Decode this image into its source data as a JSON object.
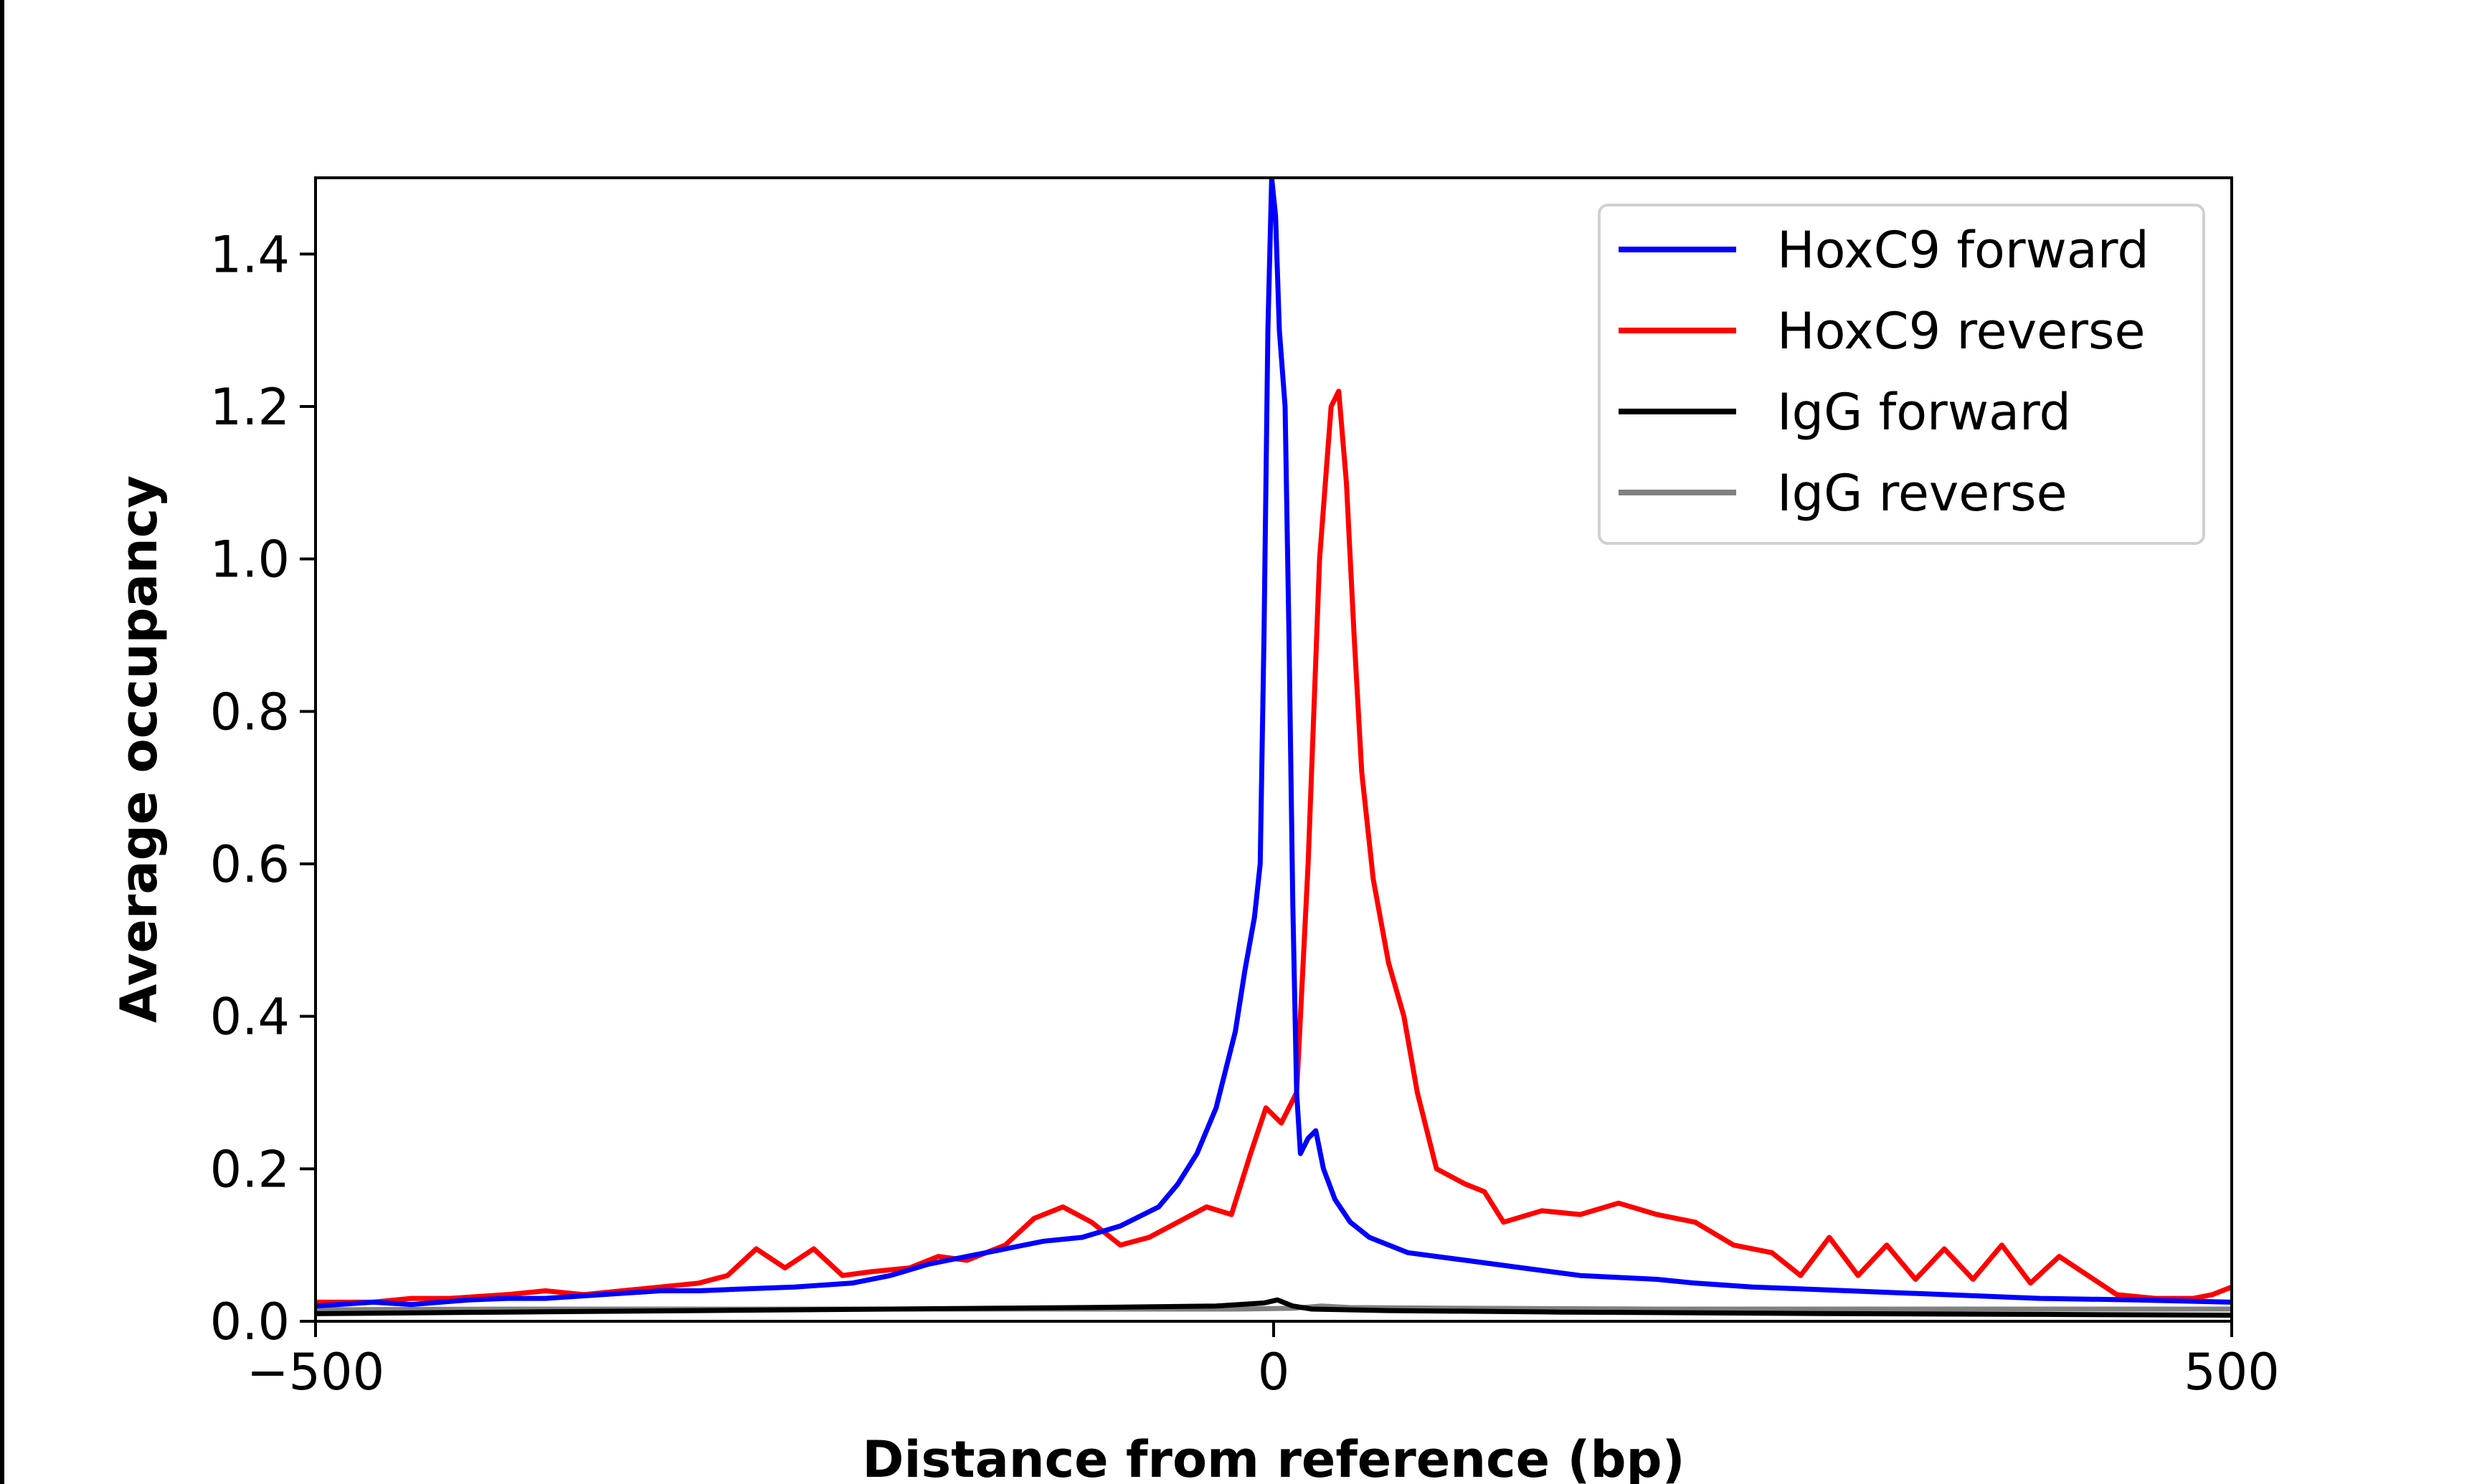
{
  "chart_data": {
    "type": "line",
    "title": "",
    "xlabel": "Distance from reference (bp)",
    "ylabel": "Average occupancy",
    "xlim": [
      -500,
      500
    ],
    "ylim": [
      0,
      1.5
    ],
    "xticks": [
      -500,
      0,
      500
    ],
    "xtick_labels": [
      "−500",
      "0",
      "500"
    ],
    "yticks": [
      0.0,
      0.2,
      0.4,
      0.6,
      0.8,
      1.0,
      1.2,
      1.4
    ],
    "ytick_labels": [
      "0.0",
      "0.2",
      "0.4",
      "0.6",
      "0.8",
      "1.0",
      "1.2",
      "1.4"
    ],
    "grid": false,
    "legend_position": "top-right",
    "series": [
      {
        "name": "HoxC9 forward",
        "color": "#0000ff",
        "points": [
          [
            -500,
            0.02
          ],
          [
            -470,
            0.025
          ],
          [
            -450,
            0.022
          ],
          [
            -420,
            0.028
          ],
          [
            -400,
            0.03
          ],
          [
            -380,
            0.03
          ],
          [
            -350,
            0.035
          ],
          [
            -320,
            0.04
          ],
          [
            -300,
            0.04
          ],
          [
            -280,
            0.042
          ],
          [
            -250,
            0.045
          ],
          [
            -220,
            0.05
          ],
          [
            -200,
            0.06
          ],
          [
            -180,
            0.075
          ],
          [
            -160,
            0.085
          ],
          [
            -140,
            0.095
          ],
          [
            -120,
            0.105
          ],
          [
            -100,
            0.11
          ],
          [
            -80,
            0.125
          ],
          [
            -60,
            0.15
          ],
          [
            -50,
            0.18
          ],
          [
            -40,
            0.22
          ],
          [
            -30,
            0.28
          ],
          [
            -20,
            0.38
          ],
          [
            -15,
            0.46
          ],
          [
            -10,
            0.53
          ],
          [
            -7,
            0.6
          ],
          [
            -5,
            0.9
          ],
          [
            -3,
            1.3
          ],
          [
            -1,
            1.5
          ],
          [
            1,
            1.45
          ],
          [
            3,
            1.3
          ],
          [
            6,
            1.2
          ],
          [
            8,
            0.9
          ],
          [
            10,
            0.55
          ],
          [
            12,
            0.3
          ],
          [
            14,
            0.22
          ],
          [
            18,
            0.24
          ],
          [
            22,
            0.25
          ],
          [
            26,
            0.2
          ],
          [
            32,
            0.16
          ],
          [
            40,
            0.13
          ],
          [
            50,
            0.11
          ],
          [
            70,
            0.09
          ],
          [
            100,
            0.08
          ],
          [
            130,
            0.07
          ],
          [
            160,
            0.06
          ],
          [
            200,
            0.055
          ],
          [
            220,
            0.05
          ],
          [
            250,
            0.045
          ],
          [
            300,
            0.04
          ],
          [
            350,
            0.035
          ],
          [
            400,
            0.03
          ],
          [
            450,
            0.028
          ],
          [
            500,
            0.025
          ]
        ]
      },
      {
        "name": "HoxC9 reverse",
        "color": "#ff0000",
        "points": [
          [
            -500,
            0.025
          ],
          [
            -470,
            0.025
          ],
          [
            -450,
            0.03
          ],
          [
            -430,
            0.03
          ],
          [
            -400,
            0.035
          ],
          [
            -380,
            0.04
          ],
          [
            -360,
            0.035
          ],
          [
            -340,
            0.04
          ],
          [
            -320,
            0.045
          ],
          [
            -300,
            0.05
          ],
          [
            -285,
            0.06
          ],
          [
            -270,
            0.095
          ],
          [
            -255,
            0.07
          ],
          [
            -240,
            0.095
          ],
          [
            -225,
            0.06
          ],
          [
            -210,
            0.065
          ],
          [
            -190,
            0.07
          ],
          [
            -175,
            0.085
          ],
          [
            -160,
            0.08
          ],
          [
            -140,
            0.1
          ],
          [
            -125,
            0.135
          ],
          [
            -110,
            0.15
          ],
          [
            -95,
            0.13
          ],
          [
            -80,
            0.1
          ],
          [
            -65,
            0.11
          ],
          [
            -50,
            0.13
          ],
          [
            -35,
            0.15
          ],
          [
            -22,
            0.14
          ],
          [
            -12,
            0.22
          ],
          [
            -4,
            0.28
          ],
          [
            4,
            0.26
          ],
          [
            12,
            0.3
          ],
          [
            18,
            0.6
          ],
          [
            24,
            1.0
          ],
          [
            30,
            1.2
          ],
          [
            34,
            1.22
          ],
          [
            38,
            1.1
          ],
          [
            42,
            0.9
          ],
          [
            46,
            0.72
          ],
          [
            52,
            0.58
          ],
          [
            60,
            0.47
          ],
          [
            68,
            0.4
          ],
          [
            75,
            0.3
          ],
          [
            85,
            0.2
          ],
          [
            100,
            0.18
          ],
          [
            110,
            0.17
          ],
          [
            120,
            0.13
          ],
          [
            140,
            0.145
          ],
          [
            160,
            0.14
          ],
          [
            180,
            0.155
          ],
          [
            200,
            0.14
          ],
          [
            220,
            0.13
          ],
          [
            240,
            0.1
          ],
          [
            260,
            0.09
          ],
          [
            275,
            0.06
          ],
          [
            290,
            0.11
          ],
          [
            305,
            0.06
          ],
          [
            320,
            0.1
          ],
          [
            335,
            0.055
          ],
          [
            350,
            0.095
          ],
          [
            365,
            0.055
          ],
          [
            380,
            0.1
          ],
          [
            395,
            0.05
          ],
          [
            410,
            0.085
          ],
          [
            425,
            0.06
          ],
          [
            440,
            0.035
          ],
          [
            460,
            0.03
          ],
          [
            480,
            0.03
          ],
          [
            490,
            0.035
          ],
          [
            500,
            0.045
          ]
        ]
      },
      {
        "name": "IgG forward",
        "color": "#000000",
        "points": [
          [
            -500,
            0.01
          ],
          [
            -400,
            0.012
          ],
          [
            -300,
            0.014
          ],
          [
            -200,
            0.016
          ],
          [
            -100,
            0.018
          ],
          [
            -30,
            0.02
          ],
          [
            -5,
            0.024
          ],
          [
            2,
            0.028
          ],
          [
            10,
            0.02
          ],
          [
            20,
            0.016
          ],
          [
            60,
            0.014
          ],
          [
            150,
            0.012
          ],
          [
            300,
            0.01
          ],
          [
            400,
            0.009
          ],
          [
            500,
            0.008
          ]
        ]
      },
      {
        "name": "IgG reverse",
        "color": "#808080",
        "points": [
          [
            -500,
            0.015
          ],
          [
            -400,
            0.016
          ],
          [
            -300,
            0.016
          ],
          [
            -200,
            0.016
          ],
          [
            -100,
            0.016
          ],
          [
            -20,
            0.016
          ],
          [
            10,
            0.017
          ],
          [
            25,
            0.02
          ],
          [
            40,
            0.018
          ],
          [
            100,
            0.017
          ],
          [
            200,
            0.016
          ],
          [
            300,
            0.016
          ],
          [
            400,
            0.016
          ],
          [
            500,
            0.016
          ]
        ]
      }
    ]
  }
}
